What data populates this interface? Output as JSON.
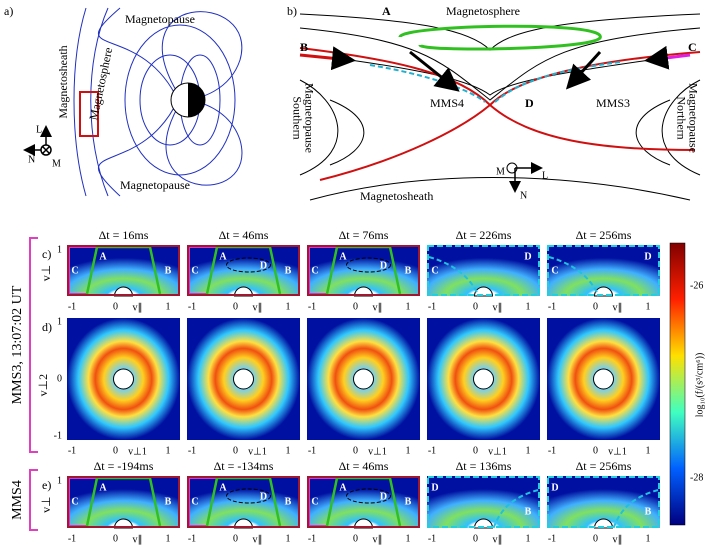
{
  "panel_a": {
    "label": "a)",
    "top": "Magnetopause",
    "bottom": "Magnetopause",
    "sheath": "Magnetosheath",
    "sphere": "Magnetosphere",
    "axes": [
      "L",
      "N",
      "M"
    ]
  },
  "panel_b": {
    "label": "b)",
    "magnetosphere": "Magnetosphere",
    "magnetosheath": "Magnetosheath",
    "south": [
      "Southern",
      "Magnetopause"
    ],
    "north": [
      "Northern",
      "Magnetopause"
    ],
    "points": [
      "A",
      "B",
      "C",
      "D"
    ],
    "mms4": "MMS4",
    "mms3": "MMS3",
    "axes": [
      "M",
      "L",
      "N"
    ]
  },
  "group_labels": [
    "MMS3, 13:07:02 UT",
    "MMS4"
  ],
  "rows": [
    {
      "label": "c)",
      "ylabel": "v⊥",
      "yticks": [
        "1"
      ],
      "xticks": [
        "-1",
        "0",
        "1"
      ],
      "xlabel": "v∥",
      "panels": [
        {
          "title": "Δt = 16ms",
          "letters": [
            "A",
            "B",
            "C"
          ]
        },
        {
          "title": "Δt = 46ms",
          "letters": [
            "A",
            "B",
            "C",
            "D"
          ]
        },
        {
          "title": "Δt = 76ms",
          "letters": [
            "A",
            "B",
            "C",
            "D"
          ]
        },
        {
          "title": "Δt = 226ms",
          "letters": [
            "C",
            "D"
          ]
        },
        {
          "title": "Δt = 256ms",
          "letters": [
            "C",
            "D"
          ]
        }
      ]
    },
    {
      "label": "d)",
      "ylabel": "v⊥2",
      "yticks": [
        "1",
        "0",
        "-1"
      ],
      "xticks": [
        "-1",
        "0",
        "1"
      ],
      "xlabel": "v⊥1",
      "panels": [
        {},
        {},
        {},
        {},
        {}
      ]
    },
    {
      "label": "e)",
      "ylabel": "v⊥",
      "yticks": [
        "1"
      ],
      "xticks": [
        "-1",
        "0",
        "1"
      ],
      "xlabel": "v∥",
      "panels": [
        {
          "title": "Δt = -194ms",
          "letters": [
            "A",
            "B",
            "C"
          ]
        },
        {
          "title": "Δt = -134ms",
          "letters": [
            "A",
            "B",
            "C",
            "D"
          ]
        },
        {
          "title": "Δt = 46ms",
          "letters": [
            "A",
            "B",
            "C",
            "D"
          ]
        },
        {
          "title": "Δt = 136ms",
          "letters": [
            "D",
            "B"
          ]
        },
        {
          "title": "Δt = 256ms",
          "letters": [
            "D",
            "B"
          ]
        }
      ]
    }
  ],
  "colorbar": {
    "label": "log₁₀(f/(s³/cm⁶))",
    "ticks": [
      "-26",
      "-28"
    ]
  }
}
